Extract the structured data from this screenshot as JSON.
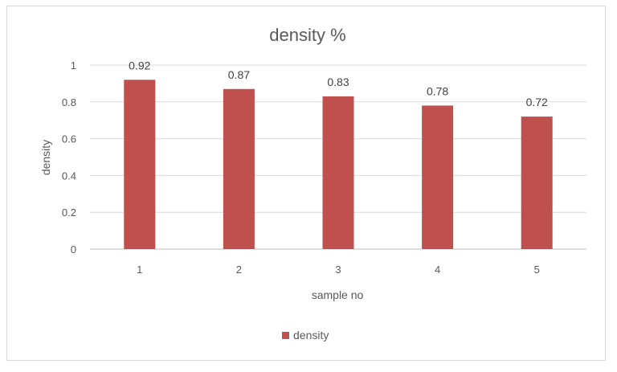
{
  "chart_data": {
    "type": "bar",
    "title": "density %",
    "xlabel": "sample no",
    "ylabel": "density",
    "categories": [
      "1",
      "2",
      "3",
      "4",
      "5"
    ],
    "series": [
      {
        "name": "density",
        "values": [
          0.92,
          0.87,
          0.83,
          0.78,
          0.72
        ],
        "color": "#c0504d"
      }
    ],
    "ylim": [
      0,
      1
    ],
    "yticks": [
      "0",
      "0.2",
      "0.4",
      "0.6",
      "0.8",
      "1"
    ],
    "data_labels": [
      "0.92",
      "0.87",
      "0.83",
      "0.78",
      "0.72"
    ],
    "grid": true,
    "legend_position": "bottom"
  }
}
